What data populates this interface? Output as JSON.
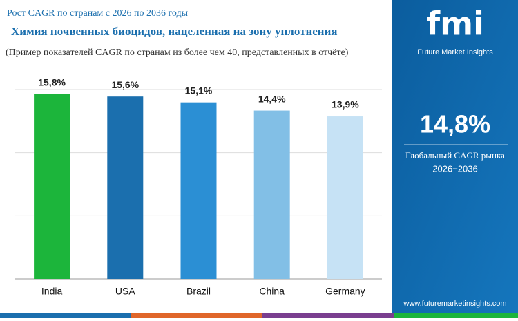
{
  "chart_data": {
    "type": "bar",
    "supertitle": "Рост CAGR по странам с 2026 по 2036 годы",
    "title": "Химия почвенных биоцидов, нацеленная на зону уплотнения",
    "subtitle": "(Пример показателей CAGR по странам из более чем 40, представленных в отчёте)",
    "categories": [
      "India",
      "USA",
      "Brazil",
      "China",
      "Germany"
    ],
    "values": [
      15.8,
      15.6,
      15.1,
      14.4,
      13.9
    ],
    "value_labels": [
      "15,8%",
      "15,6%",
      "15,1%",
      "14,4%",
      "13,9%"
    ],
    "colors": [
      "#1cb53b",
      "#1b6fae",
      "#2b8fd4",
      "#82bfe6",
      "#c6e2f5"
    ],
    "ylim": [
      0,
      16.2
    ],
    "grid": true
  },
  "panel": {
    "logo": "fmi",
    "brand": "Future Market Insights",
    "value": "14,8%",
    "caption": "Глобальный CAGR рынка",
    "period": "2026−2036",
    "website": "www.futuremarketinsights.com"
  }
}
